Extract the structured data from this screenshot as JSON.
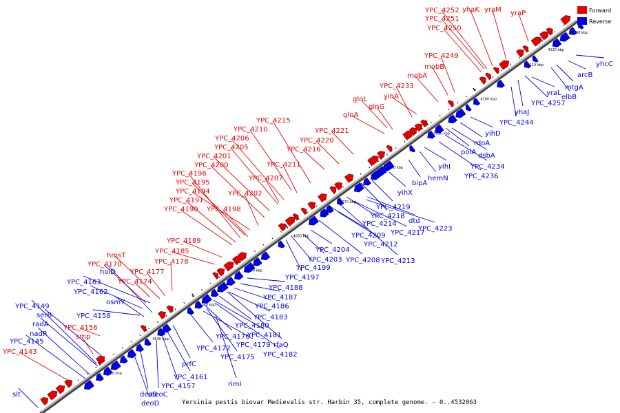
{
  "caption": "Yersinia pestis biovar Medievalis str. Harbin 35, complete genome. - 0..4532063",
  "legend": [
    {
      "label": "Forward",
      "color": "#e60000"
    },
    {
      "label": "Reverse",
      "color": "#0000e6"
    }
  ],
  "colors": {
    "forward": "#e60000",
    "reverse": "#0000e6",
    "axis": "#888888"
  },
  "ticks": [
    "4020 kbp",
    "4030 kbp",
    "4040 kbp",
    "4050 kbp",
    "4060 kbp",
    "4070 kbp",
    "4080 kbp",
    "4090 kbp",
    "4100 kbp",
    "4110 kbp",
    "4120 kbp",
    "4130 kbp"
  ],
  "forward_labels": [
    "YPC_4252",
    "yhaK",
    "yraM",
    "yraP",
    "YPC_4251",
    "YPC_4250",
    "YPC_4249",
    "mobB",
    "mobA",
    "YPC_4233",
    "yihA",
    "glnL",
    "glnG",
    "glnA",
    "YPC_4221",
    "YPC_4215",
    "YPC_4220",
    "YPC_4210",
    "YPC_4206",
    "YPC_4216",
    "YPC_4205",
    "YPC_4201",
    "YPC_4211",
    "YPC_4200",
    "YPC_4207",
    "YPC_4196",
    "YPC_4195",
    "YPC_4194",
    "YPC_4202",
    "YPC_4191",
    "YPC_4190",
    "YPC_4198",
    "YPC_4189",
    "YPC_4185",
    "hmsT",
    "YPC_4178",
    "YPC_4170",
    "YPC_4177",
    "YPC_4174",
    "YPC_4156",
    "smp",
    "YPC_4143"
  ],
  "reverse_labels": [
    "yhcC",
    "arcB",
    "mtgA",
    "elbB",
    "yraL",
    "YPC_4257",
    "yhaJ",
    "YPC_4244",
    "yihD",
    "rdoA",
    "dsbA",
    "polA",
    "YPC_4234",
    "YPC_4236",
    "yihI",
    "hemN",
    "bipA",
    "yihX",
    "YPC_4219",
    "YPC_4218",
    "dtd",
    "YPC_4214",
    "YPC_4223",
    "YPC_4217",
    "YPC_4209",
    "YPC_4212",
    "YPC_4204",
    "YPC_4203",
    "YPC_4208",
    "YPC_4213",
    "YPC_4199",
    "YPC_4197",
    "YPC_4188",
    "YPC_4187",
    "YPC_4186",
    "YPC_4183",
    "YPC_4180",
    "YPC_4181",
    "YPC_4176",
    "YPC_4179",
    "rfaQ",
    "YPC_4172",
    "YPC_4175",
    "YPC_4182",
    "prfC",
    "YPC_4161",
    "rimI",
    "YPC_4157",
    "deoC",
    "deoB",
    "deoD",
    "YPC_4163",
    "YPC_4162",
    "holD",
    "osmY",
    "YPC_4158",
    "YPC_4149",
    "serB",
    "radA",
    "nadR",
    "YPC_4145",
    "slt"
  ]
}
